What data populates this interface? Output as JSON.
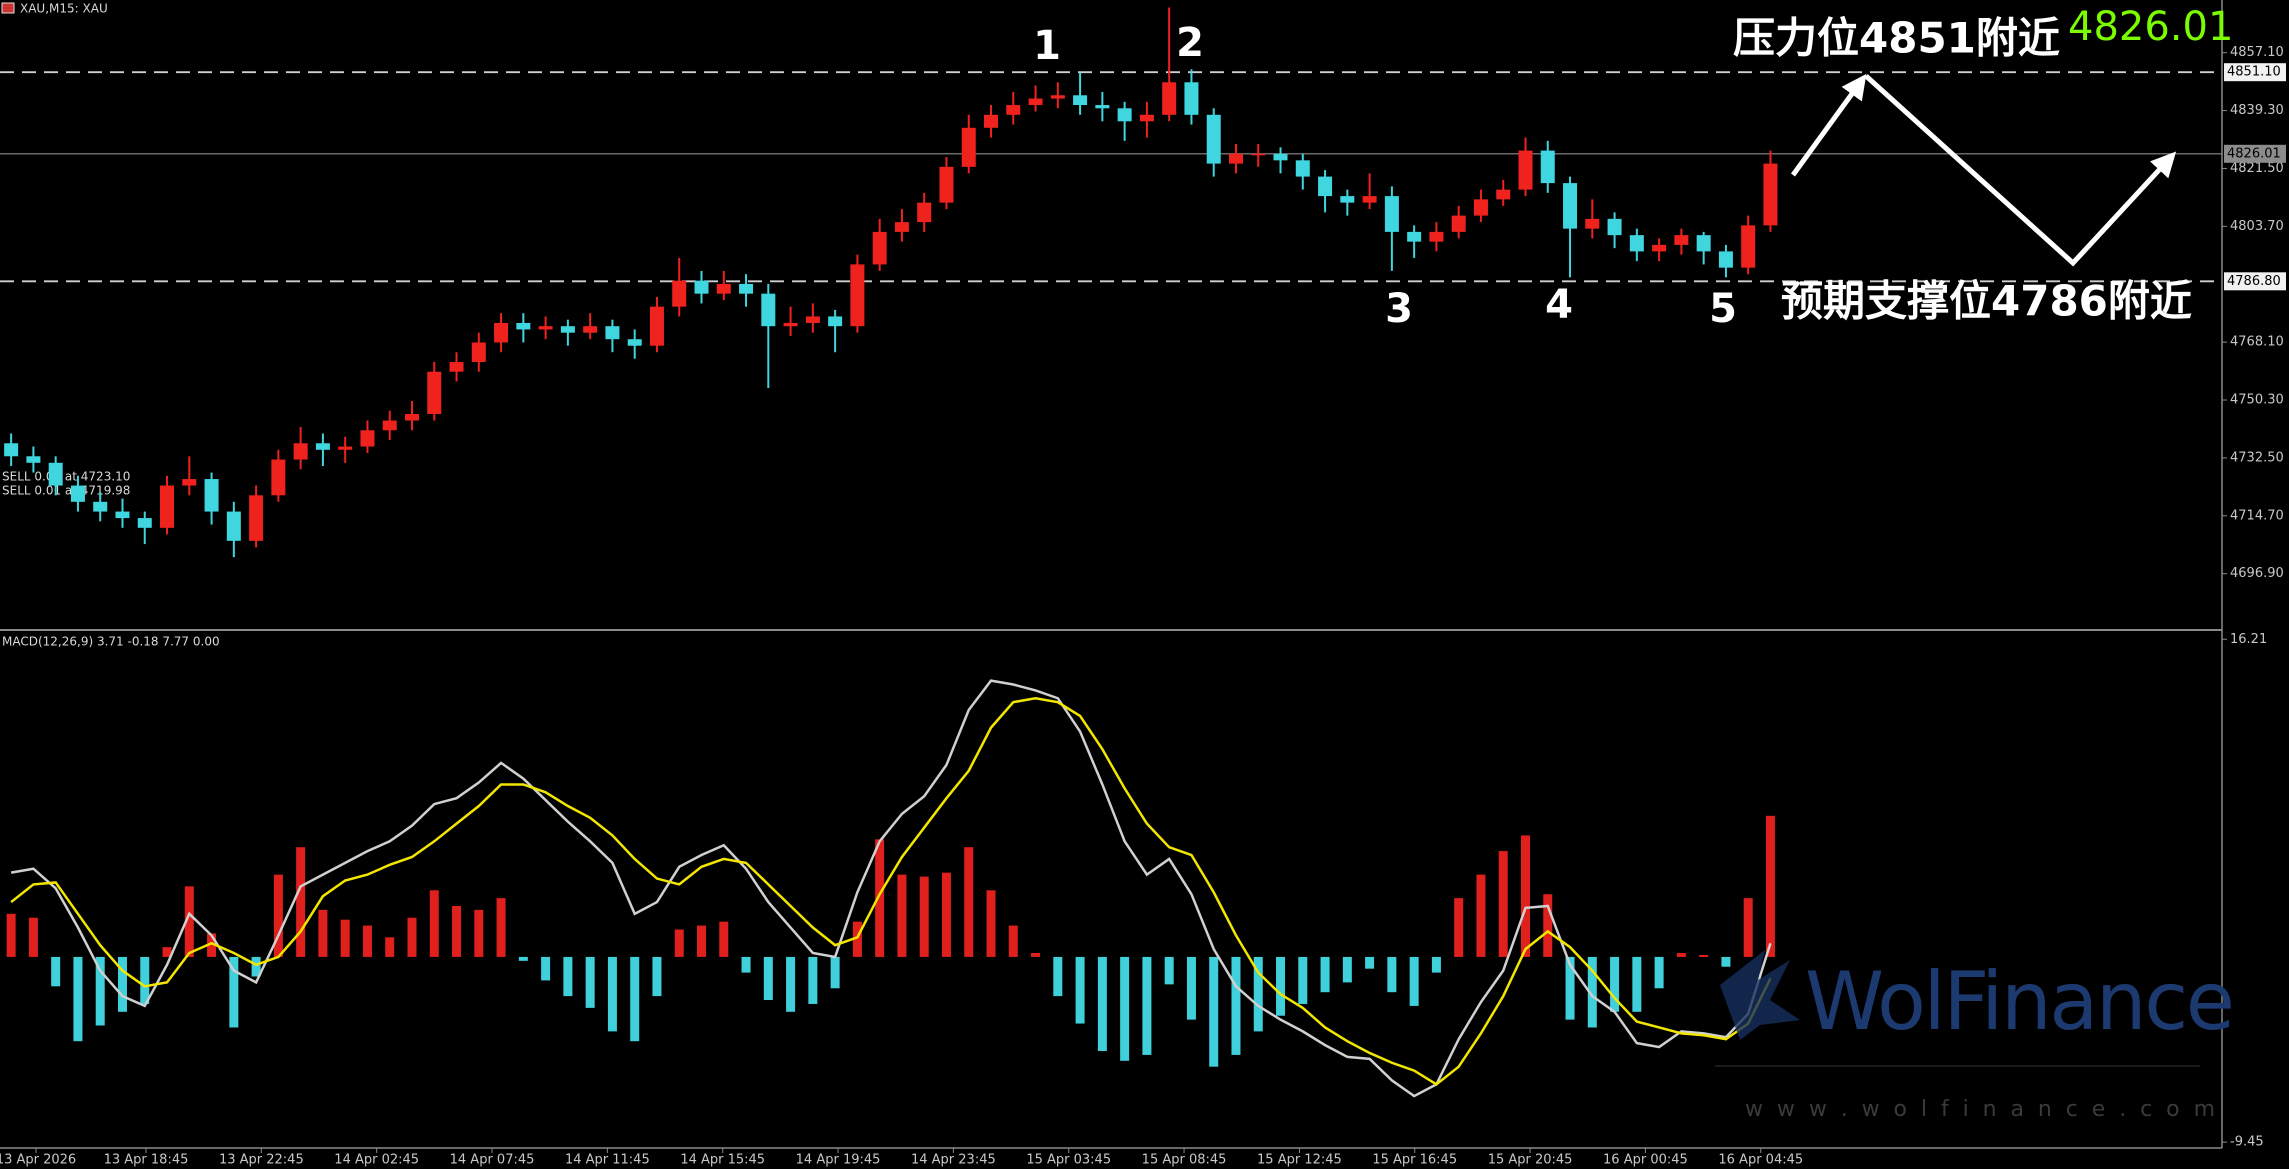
{
  "header": {
    "symbol": "XAU,M15:  XAU",
    "orders": [
      "SELL 0.01 at 4723.10",
      "SELL 0.01 at 4719.98"
    ]
  },
  "watermark": {
    "brand": "WolFinance",
    "url": "w w w . w o l f i n a n c e . c o m"
  },
  "chart_data": [
    {
      "type": "candlestick",
      "ylim": [
        4680.2,
        4873.3
      ],
      "yticks": [
        {
          "value": 4857.1,
          "label": "4857.10"
        },
        {
          "value": 4839.3,
          "label": "4839.30"
        },
        {
          "value": 4821.5,
          "label": "4821.50"
        },
        {
          "value": 4803.7,
          "label": "4803.70"
        },
        {
          "value": 4768.1,
          "label": "4768.10"
        },
        {
          "value": 4750.3,
          "label": "4750.30"
        },
        {
          "value": 4732.5,
          "label": "4732.50"
        },
        {
          "value": 4714.7,
          "label": "4714.70"
        },
        {
          "value": 4696.9,
          "label": "4696.90"
        }
      ],
      "up_color": "#f0221e",
      "down_color": "#3fd6e0",
      "candles": [
        [
          4737,
          4740,
          4730,
          4733
        ],
        [
          4733,
          4736,
          4728,
          4731
        ],
        [
          4731,
          4733,
          4721,
          4724
        ],
        [
          4724,
          4727,
          4716,
          4719
        ],
        [
          4719,
          4722,
          4713,
          4716
        ],
        [
          4716,
          4720,
          4711,
          4714
        ],
        [
          4714,
          4716,
          4706,
          4711
        ],
        [
          4711,
          4727,
          4709,
          4724
        ],
        [
          4724,
          4733,
          4721,
          4726
        ],
        [
          4726,
          4728,
          4712,
          4716
        ],
        [
          4716,
          4719,
          4702,
          4707
        ],
        [
          4707,
          4724,
          4705,
          4721
        ],
        [
          4721,
          4735,
          4719,
          4732
        ],
        [
          4732,
          4742,
          4729,
          4737
        ],
        [
          4737,
          4740,
          4730,
          4735
        ],
        [
          4735,
          4739,
          4731,
          4736
        ],
        [
          4736,
          4744,
          4734,
          4741
        ],
        [
          4741,
          4747,
          4738,
          4744
        ],
        [
          4744,
          4750,
          4741,
          4746
        ],
        [
          4746,
          4762,
          4744,
          4759
        ],
        [
          4759,
          4765,
          4756,
          4762
        ],
        [
          4762,
          4771,
          4759,
          4768
        ],
        [
          4768,
          4777,
          4765,
          4774
        ],
        [
          4774,
          4777,
          4768,
          4772
        ],
        [
          4772,
          4776,
          4769,
          4773
        ],
        [
          4773,
          4775,
          4767,
          4771
        ],
        [
          4771,
          4777,
          4769,
          4773
        ],
        [
          4773,
          4775,
          4765,
          4769
        ],
        [
          4769,
          4772,
          4763,
          4767
        ],
        [
          4767,
          4782,
          4765,
          4779
        ],
        [
          4779,
          4794,
          4776,
          4787
        ],
        [
          4787,
          4790,
          4780,
          4783
        ],
        [
          4783,
          4790,
          4781,
          4786
        ],
        [
          4786,
          4789,
          4779,
          4783
        ],
        [
          4783,
          4786,
          4754,
          4773
        ],
        [
          4773,
          4779,
          4770,
          4774
        ],
        [
          4774,
          4780,
          4771,
          4776
        ],
        [
          4776,
          4778,
          4765,
          4773
        ],
        [
          4773,
          4795,
          4771,
          4792
        ],
        [
          4792,
          4806,
          4790,
          4802
        ],
        [
          4802,
          4809,
          4799,
          4805
        ],
        [
          4805,
          4814,
          4802,
          4811
        ],
        [
          4811,
          4825,
          4809,
          4822
        ],
        [
          4822,
          4838,
          4820,
          4834
        ],
        [
          4834,
          4841,
          4831,
          4838
        ],
        [
          4838,
          4845,
          4835,
          4841
        ],
        [
          4841,
          4847,
          4839,
          4843
        ],
        [
          4843,
          4848,
          4840,
          4844
        ],
        [
          4844,
          4851,
          4838,
          4841
        ],
        [
          4841,
          4845,
          4836,
          4840
        ],
        [
          4840,
          4842,
          4830,
          4836
        ],
        [
          4836,
          4842,
          4831,
          4838
        ],
        [
          4838,
          4871,
          4836,
          4848
        ],
        [
          4848,
          4852,
          4835,
          4838
        ],
        [
          4838,
          4840,
          4819,
          4823
        ],
        [
          4823,
          4829,
          4820,
          4826
        ],
        [
          4826,
          4829,
          4822,
          4826
        ],
        [
          4826,
          4828,
          4820,
          4824
        ],
        [
          4824,
          4826,
          4815,
          4819
        ],
        [
          4819,
          4821,
          4808,
          4813
        ],
        [
          4813,
          4815,
          4807,
          4811
        ],
        [
          4811,
          4820,
          4809,
          4813
        ],
        [
          4813,
          4816,
          4790,
          4802
        ],
        [
          4802,
          4804,
          4794,
          4799
        ],
        [
          4799,
          4805,
          4796,
          4802
        ],
        [
          4802,
          4810,
          4800,
          4807
        ],
        [
          4807,
          4815,
          4805,
          4812
        ],
        [
          4812,
          4818,
          4810,
          4815
        ],
        [
          4815,
          4831,
          4813,
          4827
        ],
        [
          4827,
          4830,
          4814,
          4817
        ],
        [
          4817,
          4819,
          4788,
          4803
        ],
        [
          4803,
          4812,
          4800,
          4806
        ],
        [
          4806,
          4808,
          4797,
          4801
        ],
        [
          4801,
          4803,
          4793,
          4796
        ],
        [
          4796,
          4800,
          4793,
          4798
        ],
        [
          4798,
          4803,
          4795,
          4801
        ],
        [
          4801,
          4802,
          4792,
          4796
        ],
        [
          4796,
          4798,
          4788,
          4791
        ],
        [
          4791,
          4807,
          4789,
          4804
        ],
        [
          4804,
          4827,
          4802,
          4823
        ]
      ],
      "price_lines": [
        {
          "value": 4851.1,
          "label": "4851.10",
          "style": "dashed"
        },
        {
          "value": 4826.01,
          "label": "4826.01",
          "style": "solid"
        },
        {
          "value": 4786.8,
          "label": "4786.80",
          "style": "dashed"
        }
      ],
      "wave_labels": [
        "1",
        "2",
        "3",
        "4",
        "5"
      ],
      "resistance_text": "压力位4851附近",
      "support_text": "预期支撑位4786附近"
    },
    {
      "type": "macd",
      "title": "MACD(12,26,9) 3.71 -0.18 7.77 0.00",
      "ylim": [
        -9.75,
        16.58
      ],
      "yticks": [
        16.21,
        -9.45
      ],
      "histogram": {
        "up_color": "#e0201c",
        "down_color": "#3fd0dc",
        "values": [
          2.2,
          2.0,
          -1.5,
          -4.3,
          -3.5,
          -2.8,
          -2.4,
          0.5,
          3.6,
          1.2,
          -3.6,
          -1.0,
          4.2,
          5.6,
          2.4,
          1.9,
          1.6,
          1.0,
          2.0,
          3.4,
          2.6,
          2.4,
          3.0,
          -0.2,
          -1.2,
          -2.0,
          -2.6,
          -3.8,
          -4.3,
          -2.0,
          1.4,
          1.6,
          1.8,
          -0.8,
          -2.2,
          -2.8,
          -2.4,
          -1.6,
          1.8,
          6.0,
          4.2,
          4.1,
          4.3,
          5.6,
          3.4,
          1.6,
          0.2,
          -2.0,
          -3.4,
          -4.8,
          -5.3,
          -5.0,
          -1.4,
          -3.2,
          -5.6,
          -5.0,
          -3.8,
          -3.0,
          -2.4,
          -1.8,
          -1.3,
          -0.6,
          -1.8,
          -2.5,
          -0.8,
          3.0,
          4.2,
          5.4,
          6.2,
          3.2,
          -3.2,
          -3.6,
          -2.8,
          -2.8,
          -1.6,
          0.2,
          0.1,
          -0.5,
          3.0,
          7.2
        ]
      },
      "series": [
        {
          "color": "#d0d0d0",
          "values": [
            4.3,
            4.5,
            3.5,
            1.5,
            -0.7,
            -2.0,
            -2.5,
            -0.4,
            2.2,
            1.1,
            -0.7,
            -1.3,
            1.1,
            3.6,
            4.2,
            4.8,
            5.4,
            5.9,
            6.7,
            7.8,
            8.1,
            8.9,
            9.9,
            9.1,
            8.0,
            6.9,
            5.9,
            4.8,
            2.2,
            2.8,
            4.6,
            5.2,
            5.7,
            4.5,
            2.8,
            1.5,
            0.2,
            0,
            3.3,
            5.9,
            7.3,
            8.2,
            9.8,
            12.6,
            14.1,
            13.9,
            13.6,
            13.2,
            11.5,
            8.8,
            5.9,
            4.2,
            5.0,
            3.2,
            0.4,
            -1.5,
            -2.5,
            -3.2,
            -3.8,
            -4.5,
            -5.1,
            -5.2,
            -6.3,
            -7.1,
            -6.5,
            -4.2,
            -2.3,
            -0.7,
            2.5,
            2.6,
            -0.4,
            -2.0,
            -2.8,
            -4.4,
            -4.6,
            -3.8,
            -3.9,
            -4.1,
            -2.9,
            0.7
          ]
        },
        {
          "color": "#f2e600",
          "values": [
            2.8,
            3.7,
            3.8,
            2.2,
            0.6,
            -0.7,
            -1.5,
            -1.3,
            0.2,
            0.7,
            0.2,
            -0.4,
            0,
            1.3,
            3.1,
            3.9,
            4.2,
            4.7,
            5.1,
            5.9,
            6.8,
            7.7,
            8.8,
            8.8,
            8.4,
            7.7,
            7.1,
            6.2,
            5.0,
            4.0,
            3.7,
            4.6,
            5.0,
            4.8,
            3.7,
            2.6,
            1.5,
            0.6,
            1.0,
            3.2,
            5.1,
            6.6,
            8.1,
            9.5,
            11.7,
            13.0,
            13.2,
            13.0,
            12.3,
            10.6,
            8.6,
            6.8,
            5.6,
            5.2,
            3.3,
            1.1,
            -0.8,
            -1.9,
            -2.6,
            -3.6,
            -4.3,
            -4.9,
            -5.4,
            -5.8,
            -6.5,
            -5.6,
            -3.9,
            -2.0,
            0.4,
            1.3,
            0.5,
            -0.7,
            -2.1,
            -3.3,
            -3.6,
            -3.9,
            -4.0,
            -4.2,
            -3.4,
            -1.1
          ]
        }
      ],
      "x_labels": [
        "13 Apr 2026",
        "13 Apr 18:45",
        "13 Apr 22:45",
        "14 Apr 02:45",
        "14 Apr 07:45",
        "14 Apr 11:45",
        "14 Apr 15:45",
        "14 Apr 19:45",
        "14 Apr 23:45",
        "15 Apr 03:45",
        "15 Apr 08:45",
        "15 Apr 12:45",
        "15 Apr 16:45",
        "15 Apr 20:45",
        "16 Apr 00:45",
        "16 Apr 04:45"
      ]
    }
  ]
}
